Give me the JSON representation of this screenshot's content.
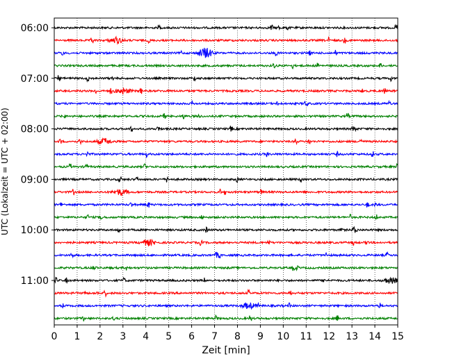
{
  "chart_data": {
    "type": "line",
    "subtype": "helicorder-seismogram",
    "title": "",
    "xlabel": "Zeit  [min]",
    "ylabel": "UTC (Lokalzeit = UTC + 02:00)",
    "xlim": [
      0,
      15
    ],
    "x_ticks": [
      "0",
      "1",
      "2",
      "3",
      "4",
      "5",
      "6",
      "7",
      "8",
      "9",
      "10",
      "11",
      "12",
      "13",
      "14",
      "15"
    ],
    "y_tick_labels": [
      "06:00",
      "07:00",
      "08:00",
      "09:00",
      "10:00",
      "11:00"
    ],
    "trace_start_times_utc": [
      "06:00",
      "06:15",
      "06:30",
      "06:45",
      "07:00",
      "07:15",
      "07:30",
      "07:45",
      "08:00",
      "08:15",
      "08:30",
      "08:45",
      "09:00",
      "09:15",
      "09:30",
      "09:45",
      "10:00",
      "10:15",
      "10:30",
      "10:45",
      "11:00",
      "11:15",
      "11:30",
      "11:45"
    ],
    "trace_duration_min": 15,
    "color_cycle": [
      "#000000",
      "#ff0000",
      "#0000ff",
      "#008000"
    ],
    "grid": "vertical dotted lines at each minute",
    "legend": "none",
    "notable_events": [
      {
        "trace": "06:30",
        "minute": 6.6,
        "note": "largest burst"
      },
      {
        "trace": "06:15",
        "minute": 2.7
      },
      {
        "trace": "07:15",
        "minute": 3.0
      },
      {
        "trace": "08:15",
        "minute": 2.2
      },
      {
        "trace": "09:15",
        "minute": 2.9
      },
      {
        "trace": "10:15",
        "minute": 4.1
      },
      {
        "trace": "11:00",
        "minute": 14.7
      },
      {
        "trace": "11:30",
        "minute": 8.5
      }
    ]
  }
}
